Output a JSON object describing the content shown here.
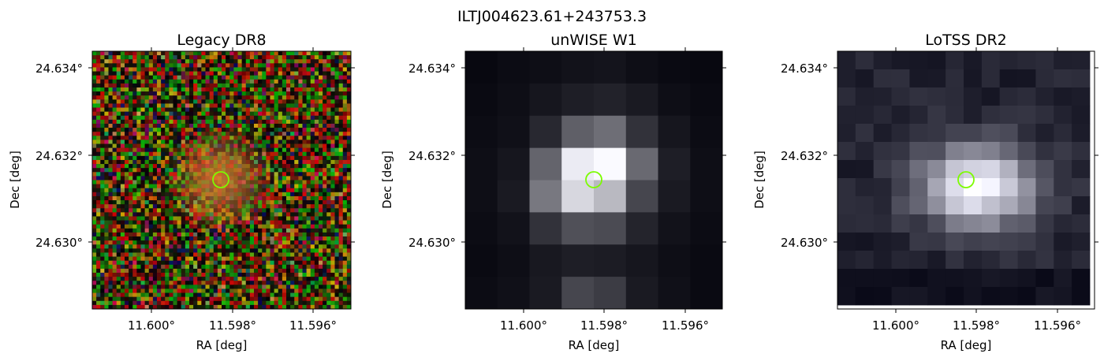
{
  "figure": {
    "suptitle": "ILTJ004623.61+243753.3",
    "panels": [
      {
        "title": "Legacy DR8",
        "xlabel": "RA [deg]",
        "ylabel": "Dec [deg]",
        "xticks": [
          "11.600°",
          "11.598°",
          "11.596°"
        ],
        "yticks": [
          "24.634°",
          "24.632°",
          "24.630°"
        ],
        "image": "noisy RGB optical cutout with faint orange galaxy at centre"
      },
      {
        "title": "unWISE W1",
        "xlabel": "RA [deg]",
        "ylabel": "Dec [deg]",
        "xticks": [
          "11.600°",
          "11.598°",
          "11.596°"
        ],
        "yticks": [
          "24.634°",
          "24.632°",
          "24.630°"
        ],
        "image": "coarse grayscale infrared cutout with bright central source"
      },
      {
        "title": "LoTSS DR2",
        "xlabel": "RA [deg]",
        "ylabel": "Dec [deg]",
        "xticks": [
          "11.600°",
          "11.598°",
          "11.596°"
        ],
        "yticks": [
          "24.634°",
          "24.632°",
          "24.630°"
        ],
        "image": "grayscale radio cutout with extended central emission"
      }
    ],
    "marker_color": "#7CFC00"
  }
}
